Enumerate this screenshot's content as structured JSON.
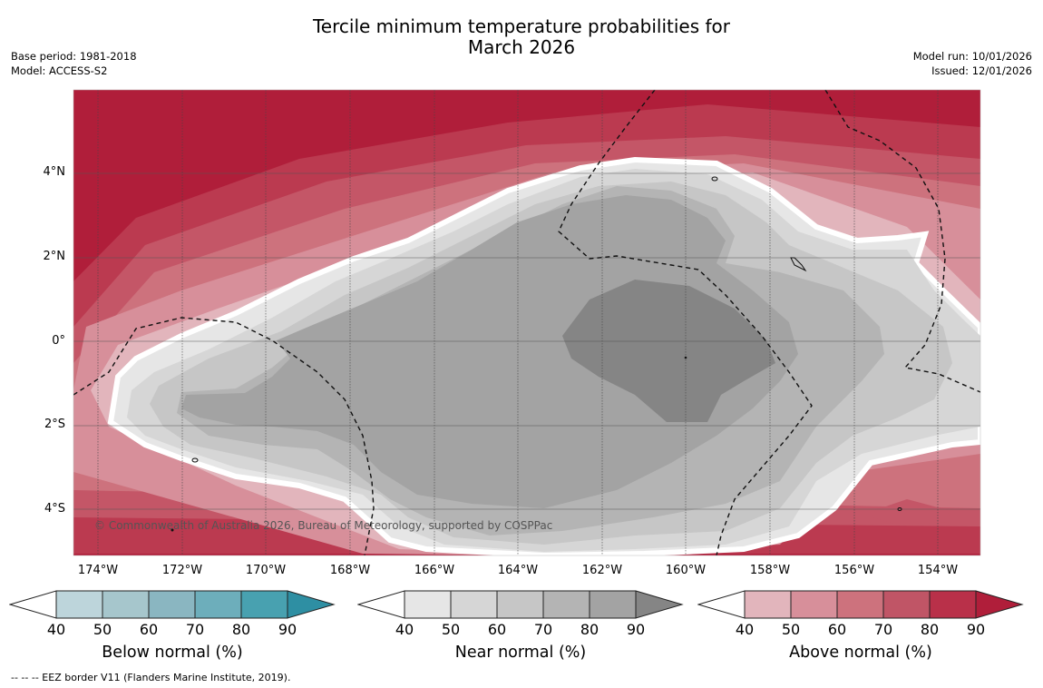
{
  "title": {
    "line1": "Tercile minimum temperature probabilities for",
    "line2": "March 2026"
  },
  "meta": {
    "base_period": "Base period: 1981-2018",
    "model": "Model: ACCESS-S2",
    "model_run": "Model run: 10/01/2026",
    "issued": "Issued: 12/01/2026"
  },
  "axes": {
    "lat_labels": [
      "4°N",
      "2°N",
      "0°",
      "2°S",
      "4°S"
    ],
    "lon_labels": [
      "174°W",
      "172°W",
      "170°W",
      "168°W",
      "166°W",
      "164°W",
      "162°W",
      "160°W",
      "158°W",
      "156°W",
      "154°W"
    ]
  },
  "copyright": "© Commonwealth of Australia 2026, Bureau of Meteorology, supported by COSPPac",
  "colorbars": [
    {
      "id": "below",
      "title": "Below normal (%)",
      "ticks": [
        "40",
        "50",
        "60",
        "70",
        "80",
        "90"
      ],
      "colors": [
        "#bdd5db",
        "#a6c6cc",
        "#8ab6c1",
        "#6daebb",
        "#48a1b0",
        "#2e8fa3"
      ]
    },
    {
      "id": "near",
      "title": "Near normal (%)",
      "ticks": [
        "40",
        "50",
        "60",
        "70",
        "80",
        "90"
      ],
      "colors": [
        "#e6e6e6",
        "#d6d6d6",
        "#c6c6c6",
        "#b4b4b4",
        "#a3a3a3",
        "#858585"
      ]
    },
    {
      "id": "above",
      "title": "Above normal (%)",
      "ticks": [
        "40",
        "50",
        "60",
        "70",
        "80",
        "90"
      ],
      "colors": [
        "#e2b5bc",
        "#d78f9a",
        "#cd727d",
        "#c05566",
        "#b93049",
        "#b01e3a"
      ]
    }
  ],
  "footnote": "-- -- -- EEZ border V11 (Flanders Marine Institute, 2019)."
}
